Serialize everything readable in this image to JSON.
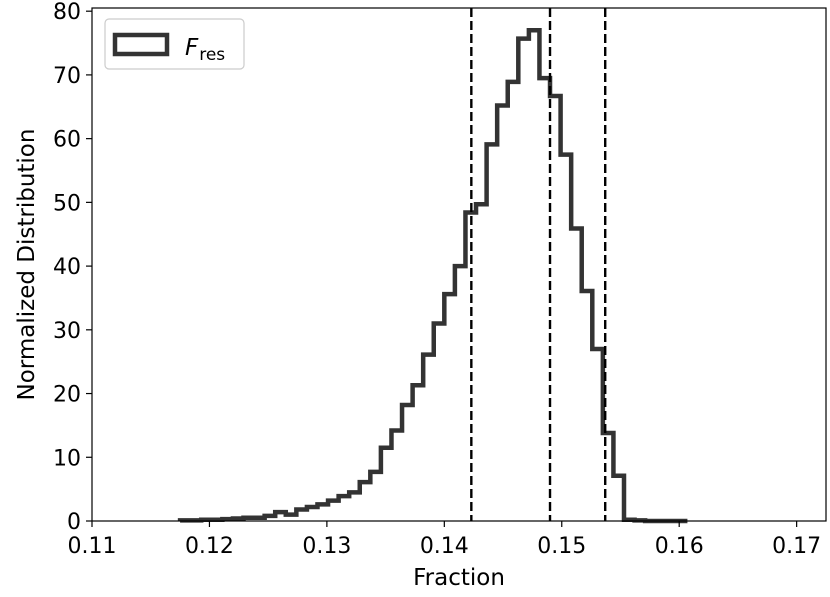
{
  "chart_data": {
    "type": "histogram",
    "title": "",
    "xlabel": "Fraction",
    "ylabel": "Normalized Distribution",
    "xlim": [
      0.11,
      0.1725
    ],
    "ylim": [
      0,
      80.5
    ],
    "x_ticks": [
      0.11,
      0.12,
      0.13,
      0.14,
      0.15,
      0.16,
      0.17
    ],
    "x_tick_labels": [
      "0.11",
      "0.12",
      "0.13",
      "0.14",
      "0.15",
      "0.16",
      "0.17"
    ],
    "y_ticks": [
      0,
      10,
      20,
      30,
      40,
      50,
      60,
      70,
      80
    ],
    "y_tick_labels": [
      "0",
      "10",
      "20",
      "30",
      "40",
      "50",
      "60",
      "70",
      "80"
    ],
    "grid": false,
    "legend": {
      "placement": "top-left",
      "entries": [
        {
          "symbol": "F",
          "subscript": "res"
        }
      ]
    },
    "series": [
      {
        "style": "step",
        "color": "#333333",
        "bin_edges": [
          0.1175,
          0.1184,
          0.1193,
          0.1202,
          0.1211,
          0.122,
          0.1229,
          0.1238,
          0.1247,
          0.1256,
          0.1265,
          0.1274,
          0.1283,
          0.1292,
          0.1301,
          0.131,
          0.1319,
          0.1328,
          0.1337,
          0.1346,
          0.1355,
          0.1364,
          0.1373,
          0.1382,
          0.1391,
          0.14,
          0.1409,
          0.1418,
          0.1427,
          0.1436,
          0.1445,
          0.1454,
          0.1463,
          0.1472,
          0.1481,
          0.149,
          0.1499,
          0.1508,
          0.1517,
          0.1526,
          0.1535,
          0.1544,
          0.1553,
          0.1562,
          0.1571,
          0.158,
          0.1589,
          0.1598,
          0.1607
        ],
        "values": [
          0.1,
          0.1,
          0.2,
          0.2,
          0.3,
          0.4,
          0.5,
          0.5,
          0.8,
          1.4,
          1.0,
          1.8,
          2.2,
          2.6,
          3.2,
          3.9,
          4.5,
          6.1,
          7.7,
          11.5,
          14.2,
          18.2,
          21.3,
          26.1,
          31.0,
          35.6,
          40.0,
          48.4,
          49.7,
          59.1,
          65.2,
          68.9,
          75.7,
          77.0,
          69.5,
          66.7,
          57.5,
          45.9,
          36.1,
          27.0,
          13.8,
          7.1,
          0.2,
          0.1,
          0,
          0,
          0,
          0
        ]
      }
    ],
    "vertical_lines": [
      {
        "x": 0.1423,
        "style": "dashed",
        "color": "#000000"
      },
      {
        "x": 0.149,
        "style": "dashed",
        "color": "#000000"
      },
      {
        "x": 0.1537,
        "style": "dashed",
        "color": "#000000"
      }
    ]
  }
}
